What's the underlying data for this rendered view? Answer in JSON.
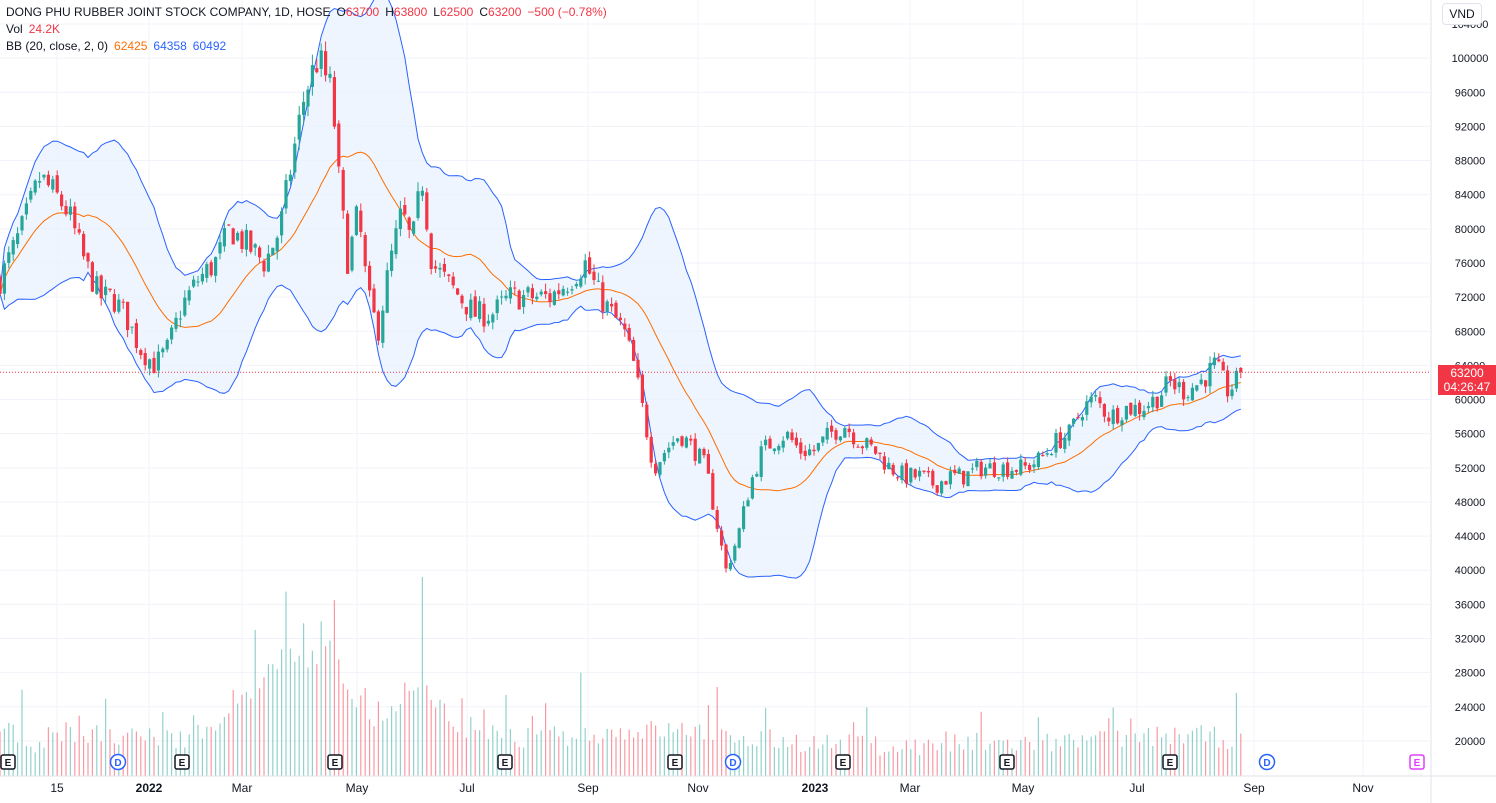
{
  "legend": {
    "symbol": "DONG PHU RUBBER JOINT STOCK COMPANY, 1D, HOSE",
    "o_label": "O",
    "o": "63700",
    "h_label": "H",
    "h": "63800",
    "l_label": "L",
    "l": "62500",
    "c_label": "C",
    "c": "63200",
    "change": "−500 (−0.78%)",
    "vol_label": "Vol",
    "vol": "24.2K",
    "bb_label": "BB (20, close, 2, 0)",
    "bb_basis": "62425",
    "bb_upper": "64358",
    "bb_lower": "60492"
  },
  "currency": "VND",
  "last_price": {
    "value": "63200",
    "countdown": "04:26:47"
  },
  "colors": {
    "up": "#26a69a",
    "down": "#f23645",
    "basis": "#ff6d00",
    "bands": "#2962ff",
    "band_fill": "#e8f1fd",
    "grid": "#f0f3fa",
    "axis_text": "#131722"
  },
  "chart_data": {
    "type": "candlestick",
    "x_ticks": [
      "15",
      "2022",
      "Mar",
      "May",
      "Jul",
      "Sep",
      "Nov",
      "2023",
      "Mar",
      "May",
      "Jul",
      "Sep",
      "Nov"
    ],
    "y_ticks": [
      "104000",
      "100000",
      "96000",
      "92000",
      "88000",
      "84000",
      "80000",
      "76000",
      "72000",
      "68000",
      "64000",
      "60000",
      "56000",
      "52000",
      "48000",
      "44000",
      "40000",
      "36000",
      "32000",
      "28000",
      "24000",
      "20000"
    ],
    "ylim": [
      18000,
      104000
    ],
    "price_anchors": [
      [
        0,
        74000
      ],
      [
        22,
        80000
      ],
      [
        40,
        86000
      ],
      [
        55,
        84000
      ],
      [
        68,
        82000
      ],
      [
        85,
        76000
      ],
      [
        100,
        72000
      ],
      [
        112,
        72000
      ],
      [
        125,
        70000
      ],
      [
        140,
        66000
      ],
      [
        155,
        64000
      ],
      [
        168,
        66000
      ],
      [
        182,
        71000
      ],
      [
        198,
        74000
      ],
      [
        215,
        76000
      ],
      [
        230,
        80000
      ],
      [
        248,
        78000
      ],
      [
        265,
        76000
      ],
      [
        280,
        80000
      ],
      [
        292,
        88000
      ],
      [
        305,
        96000
      ],
      [
        318,
        100000
      ],
      [
        332,
        96000
      ],
      [
        340,
        84000
      ],
      [
        348,
        76000
      ],
      [
        358,
        82000
      ],
      [
        368,
        72000
      ],
      [
        378,
        68000
      ],
      [
        390,
        76000
      ],
      [
        402,
        82000
      ],
      [
        412,
        78000
      ],
      [
        422,
        86000
      ],
      [
        432,
        76000
      ],
      [
        445,
        74000
      ],
      [
        460,
        72000
      ],
      [
        475,
        70000
      ],
      [
        492,
        70000
      ],
      [
        510,
        72000
      ],
      [
        530,
        72000
      ],
      [
        550,
        72000
      ],
      [
        570,
        74000
      ],
      [
        585,
        76000
      ],
      [
        600,
        72000
      ],
      [
        612,
        70000
      ],
      [
        624,
        68000
      ],
      [
        634,
        64000
      ],
      [
        644,
        58000
      ],
      [
        654,
        52000
      ],
      [
        665,
        54000
      ],
      [
        680,
        56000
      ],
      [
        695,
        54000
      ],
      [
        706,
        52000
      ],
      [
        716,
        46000
      ],
      [
        726,
        40000
      ],
      [
        738,
        44000
      ],
      [
        750,
        50000
      ],
      [
        762,
        54000
      ],
      [
        772,
        55000
      ],
      [
        786,
        56000
      ],
      [
        800,
        54000
      ],
      [
        815,
        54000
      ],
      [
        830,
        56000
      ],
      [
        845,
        57000
      ],
      [
        860,
        55000
      ],
      [
        875,
        54000
      ],
      [
        890,
        52000
      ],
      [
        905,
        51000
      ],
      [
        920,
        51000
      ],
      [
        935,
        50000
      ],
      [
        950,
        51000
      ],
      [
        965,
        51000
      ],
      [
        980,
        52000
      ],
      [
        995,
        52000
      ],
      [
        1010,
        52000
      ],
      [
        1025,
        52000
      ],
      [
        1040,
        53000
      ],
      [
        1055,
        55000
      ],
      [
        1070,
        56000
      ],
      [
        1082,
        59000
      ],
      [
        1095,
        60000
      ],
      [
        1110,
        58000
      ],
      [
        1125,
        59000
      ],
      [
        1140,
        59000
      ],
      [
        1155,
        60000
      ],
      [
        1170,
        62000
      ],
      [
        1185,
        61000
      ],
      [
        1200,
        62000
      ],
      [
        1215,
        64000
      ],
      [
        1228,
        61000
      ],
      [
        1236,
        62000
      ],
      [
        1245,
        63200
      ]
    ],
    "volume_anchors": [
      [
        0,
        22000
      ],
      [
        30,
        19000
      ],
      [
        60,
        21000
      ],
      [
        120,
        20000
      ],
      [
        180,
        20000
      ],
      [
        230,
        22000
      ],
      [
        260,
        27000
      ],
      [
        285,
        30000
      ],
      [
        310,
        29000
      ],
      [
        335,
        31000
      ],
      [
        350,
        25000
      ],
      [
        380,
        22000
      ],
      [
        424,
        26000
      ],
      [
        460,
        21000
      ],
      [
        520,
        20000
      ],
      [
        580,
        20500
      ],
      [
        640,
        21000
      ],
      [
        700,
        21000
      ],
      [
        760,
        20000
      ],
      [
        820,
        19500
      ],
      [
        900,
        19000
      ],
      [
        980,
        19500
      ],
      [
        1050,
        19500
      ],
      [
        1120,
        20000
      ],
      [
        1190,
        20500
      ],
      [
        1245,
        19800
      ]
    ],
    "volume_spikes": [
      [
        286,
        37500
      ],
      [
        336,
        36500
      ],
      [
        424,
        39200
      ],
      [
        580,
        28000
      ],
      [
        22,
        26000
      ],
      [
        255,
        33000
      ],
      [
        320,
        34000
      ],
      [
        192,
        23000
      ],
      [
        460,
        25000
      ]
    ],
    "events": [
      {
        "label": "E",
        "x": 8
      },
      {
        "label": "D",
        "x": 118
      },
      {
        "label": "E",
        "x": 182
      },
      {
        "label": "E",
        "x": 335
      },
      {
        "label": "E",
        "x": 505
      },
      {
        "label": "E",
        "x": 675
      },
      {
        "label": "D",
        "x": 733
      },
      {
        "label": "E",
        "x": 843
      },
      {
        "label": "E",
        "x": 1007
      },
      {
        "label": "E",
        "x": 1170
      },
      {
        "label": "D",
        "x": 1267
      },
      {
        "label": "E",
        "x": 1417
      }
    ]
  }
}
